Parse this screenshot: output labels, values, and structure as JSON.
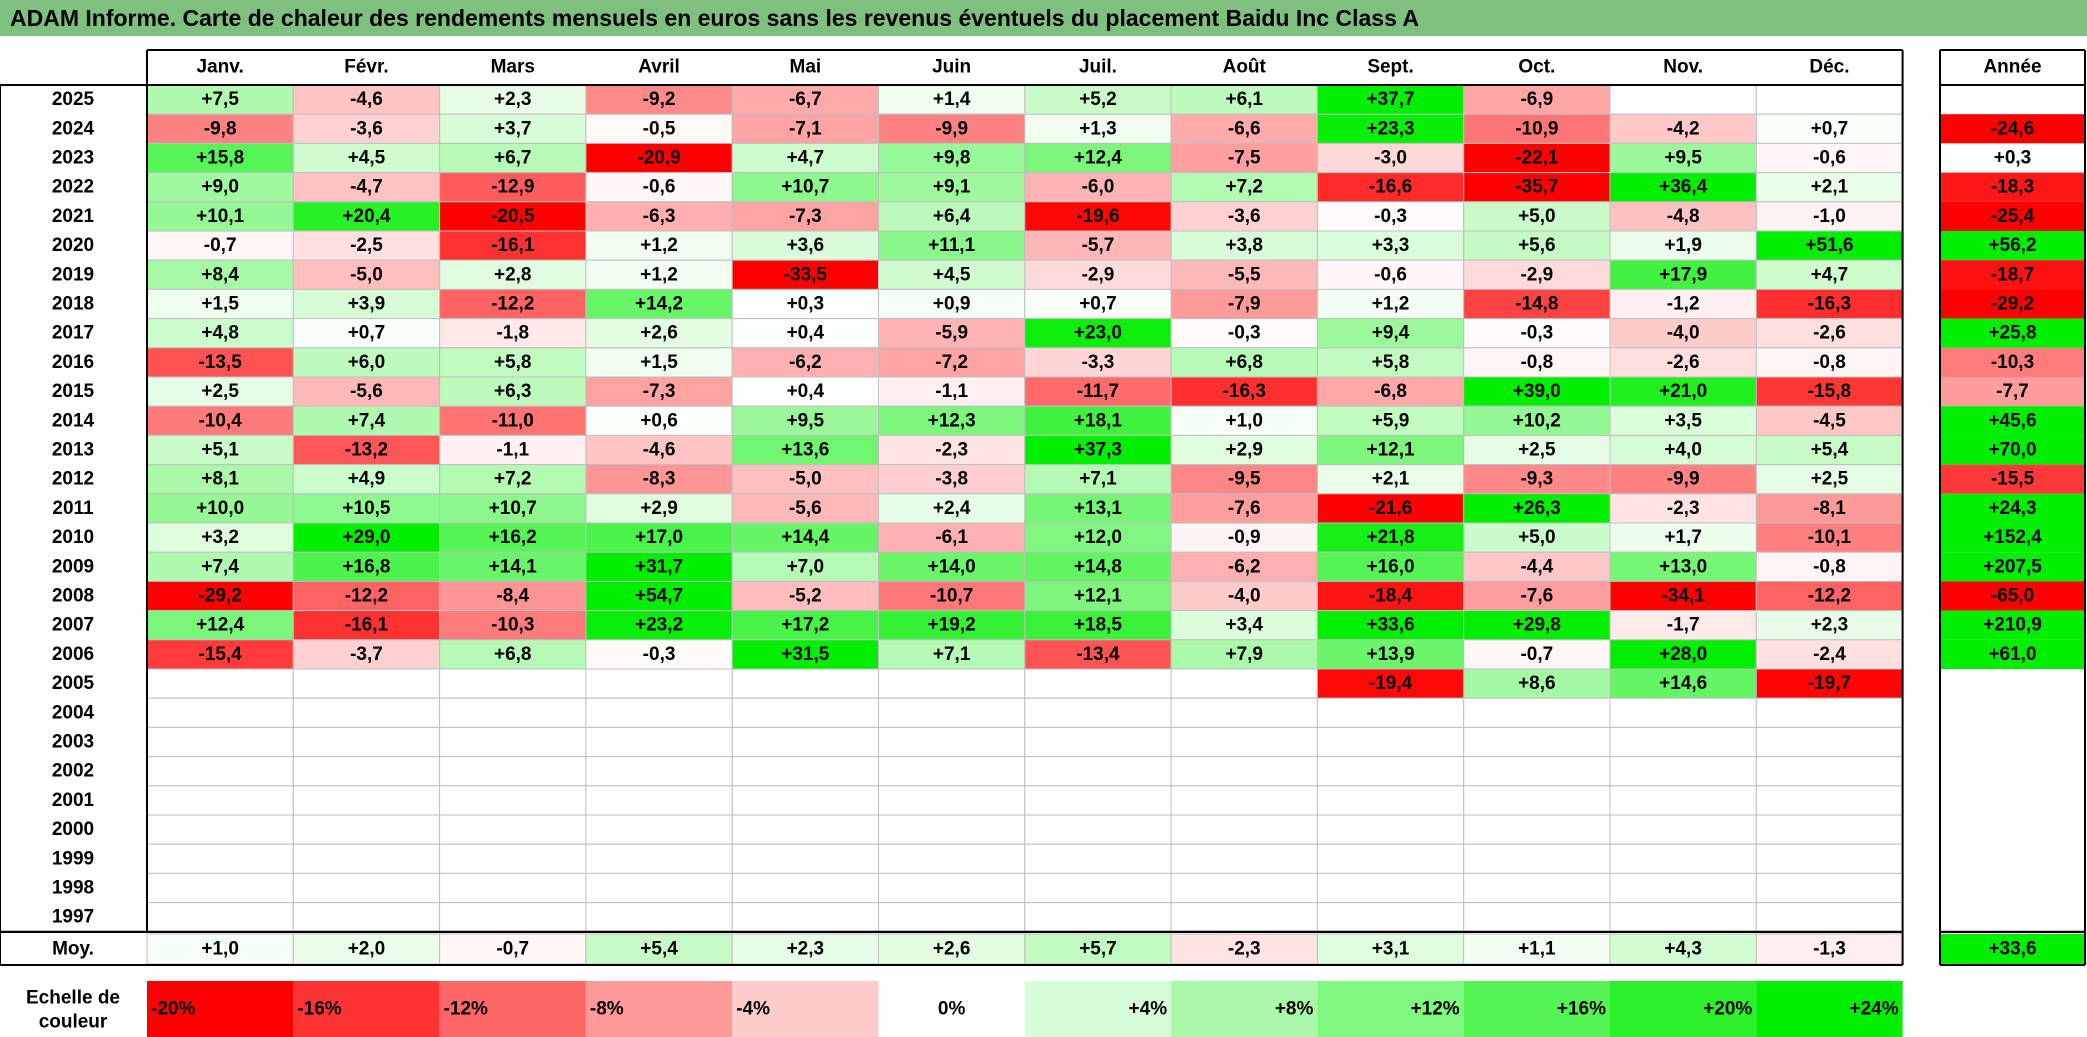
{
  "title": "ADAM Informe. Carte de chaleur des rendements mensuels en euros sans les revenus éventuels du placement Baidu Inc Class A",
  "colors": {
    "title_bar": "#7ec07e",
    "negative_max": "#ff0000",
    "neutral": "#ffffff",
    "positive_max": "#00ee00",
    "grid": "#bfbfbf",
    "border": "#000000"
  },
  "chart_data": {
    "type": "heatmap",
    "title": "ADAM Informe. Carte de chaleur des rendements mensuels en euros sans les revenus éventuels du placement Baidu Inc Class A",
    "months": [
      "Janv.",
      "Févr.",
      "Mars",
      "Avril",
      "Mai",
      "Juin",
      "Juil.",
      "Août",
      "Sept.",
      "Oct.",
      "Nov.",
      "Déc."
    ],
    "year_header": "Année",
    "years": [
      "2025",
      "2024",
      "2023",
      "2022",
      "2021",
      "2020",
      "2019",
      "2018",
      "2017",
      "2016",
      "2015",
      "2014",
      "2013",
      "2012",
      "2011",
      "2010",
      "2009",
      "2008",
      "2007",
      "2006",
      "2005",
      "2004",
      "2003",
      "2002",
      "2001",
      "2000",
      "1999",
      "1998",
      "1997"
    ],
    "values": [
      [
        "+7,5",
        "-4,6",
        "+2,3",
        "-9,2",
        "-6,7",
        "+1,4",
        "+5,2",
        "+6,1",
        "+37,7",
        "-6,9",
        "",
        ""
      ],
      [
        "-9,8",
        "-3,6",
        "+3,7",
        "-0,5",
        "-7,1",
        "-9,9",
        "+1,3",
        "-6,6",
        "+23,3",
        "-10,9",
        "-4,2",
        "+0,7"
      ],
      [
        "+15,8",
        "+4,5",
        "+6,7",
        "-20,9",
        "+4,7",
        "+9,8",
        "+12,4",
        "-7,5",
        "-3,0",
        "-22,1",
        "+9,5",
        "-0,6"
      ],
      [
        "+9,0",
        "-4,7",
        "-12,9",
        "-0,6",
        "+10,7",
        "+9,1",
        "-6,0",
        "+7,2",
        "-16,6",
        "-35,7",
        "+36,4",
        "+2,1"
      ],
      [
        "+10,1",
        "+20,4",
        "-20,5",
        "-6,3",
        "-7,3",
        "+6,4",
        "-19,6",
        "-3,6",
        "-0,3",
        "+5,0",
        "-4,8",
        "-1,0"
      ],
      [
        "-0,7",
        "-2,5",
        "-16,1",
        "+1,2",
        "+3,6",
        "+11,1",
        "-5,7",
        "+3,8",
        "+3,3",
        "+5,6",
        "+1,9",
        "+51,6"
      ],
      [
        "+8,4",
        "-5,0",
        "+2,8",
        "+1,2",
        "-33,5",
        "+4,5",
        "-2,9",
        "-5,5",
        "-0,6",
        "-2,9",
        "+17,9",
        "+4,7"
      ],
      [
        "+1,5",
        "+3,9",
        "-12,2",
        "+14,2",
        "+0,3",
        "+0,9",
        "+0,7",
        "-7,9",
        "+1,2",
        "-14,8",
        "-1,2",
        "-16,3"
      ],
      [
        "+4,8",
        "+0,7",
        "-1,8",
        "+2,6",
        "+0,4",
        "-5,9",
        "+23,0",
        "-0,3",
        "+9,4",
        "-0,3",
        "-4,0",
        "-2,6"
      ],
      [
        "-13,5",
        "+6,0",
        "+5,8",
        "+1,5",
        "-6,2",
        "-7,2",
        "-3,3",
        "+6,8",
        "+5,8",
        "-0,8",
        "-2,6",
        "-0,8"
      ],
      [
        "+2,5",
        "-5,6",
        "+6,3",
        "-7,3",
        "+0,4",
        "-1,1",
        "-11,7",
        "-16,3",
        "-6,8",
        "+39,0",
        "+21,0",
        "-15,8"
      ],
      [
        "-10,4",
        "+7,4",
        "-11,0",
        "+0,6",
        "+9,5",
        "+12,3",
        "+18,1",
        "+1,0",
        "+5,9",
        "+10,2",
        "+3,5",
        "-4,5"
      ],
      [
        "+5,1",
        "-13,2",
        "-1,1",
        "-4,6",
        "+13,6",
        "-2,3",
        "+37,3",
        "+2,9",
        "+12,1",
        "+2,5",
        "+4,0",
        "+5,4"
      ],
      [
        "+8,1",
        "+4,9",
        "+7,2",
        "-8,3",
        "-5,0",
        "-3,8",
        "+7,1",
        "-9,5",
        "+2,1",
        "-9,3",
        "-9,9",
        "+2,5"
      ],
      [
        "+10,0",
        "+10,5",
        "+10,7",
        "+2,9",
        "-5,6",
        "+2,4",
        "+13,1",
        "-7,6",
        "-21,6",
        "+26,3",
        "-2,3",
        "-8,1"
      ],
      [
        "+3,2",
        "+29,0",
        "+16,2",
        "+17,0",
        "+14,4",
        "-6,1",
        "+12,0",
        "-0,9",
        "+21,8",
        "+5,0",
        "+1,7",
        "-10,1"
      ],
      [
        "+7,4",
        "+16,8",
        "+14,1",
        "+31,7",
        "+7,0",
        "+14,0",
        "+14,8",
        "-6,2",
        "+16,0",
        "-4,4",
        "+13,0",
        "-0,8"
      ],
      [
        "-29,2",
        "-12,2",
        "-8,4",
        "+54,7",
        "-5,2",
        "-10,7",
        "+12,1",
        "-4,0",
        "-18,4",
        "-7,6",
        "-34,1",
        "-12,2"
      ],
      [
        "+12,4",
        "-16,1",
        "-10,3",
        "+23,2",
        "+17,2",
        "+19,2",
        "+18,5",
        "+3,4",
        "+33,6",
        "+29,8",
        "-1,7",
        "+2,3"
      ],
      [
        "-15,4",
        "-3,7",
        "+6,8",
        "-0,3",
        "+31,5",
        "+7,1",
        "-13,4",
        "+7,9",
        "+13,9",
        "-0,7",
        "+28,0",
        "-2,4"
      ],
      [
        "",
        "",
        "",
        "",
        "",
        "",
        "",
        "",
        "-19,4",
        "+8,6",
        "+14,6",
        "-19,7"
      ],
      [
        "",
        "",
        "",
        "",
        "",
        "",
        "",
        "",
        "",
        "",
        "",
        ""
      ],
      [
        "",
        "",
        "",
        "",
        "",
        "",
        "",
        "",
        "",
        "",
        "",
        ""
      ],
      [
        "",
        "",
        "",
        "",
        "",
        "",
        "",
        "",
        "",
        "",
        "",
        ""
      ],
      [
        "",
        "",
        "",
        "",
        "",
        "",
        "",
        "",
        "",
        "",
        "",
        ""
      ],
      [
        "",
        "",
        "",
        "",
        "",
        "",
        "",
        "",
        "",
        "",
        "",
        ""
      ],
      [
        "",
        "",
        "",
        "",
        "",
        "",
        "",
        "",
        "",
        "",
        "",
        ""
      ],
      [
        "",
        "",
        "",
        "",
        "",
        "",
        "",
        "",
        "",
        "",
        "",
        ""
      ],
      [
        "",
        "",
        "",
        "",
        "",
        "",
        "",
        "",
        "",
        "",
        "",
        ""
      ]
    ],
    "annual": [
      "",
      "-24,6",
      "+0,3",
      "-18,3",
      "-25,4",
      "+56,2",
      "-18,7",
      "-29,2",
      "+25,8",
      "-10,3",
      "-7,7",
      "+45,6",
      "+70,0",
      "-15,5",
      "+24,3",
      "+152,4",
      "+207,5",
      "-65,0",
      "+210,9",
      "+61,0",
      "",
      "",
      "",
      "",
      "",
      "",
      "",
      "",
      ""
    ],
    "average_label": "Moy.",
    "average": [
      "+1,0",
      "+2,0",
      "-0,7",
      "+5,4",
      "+2,3",
      "+2,6",
      "+5,7",
      "-2,3",
      "+3,1",
      "+1,1",
      "+4,3",
      "-1,3"
    ],
    "average_annual": "+33,6",
    "scale_label_1": "Echelle de",
    "scale_label_2": "couleur",
    "scale": [
      {
        "label": "-20%",
        "value": -20
      },
      {
        "label": "-16%",
        "value": -16
      },
      {
        "label": "-12%",
        "value": -12
      },
      {
        "label": "-8%",
        "value": -8
      },
      {
        "label": "-4%",
        "value": -4
      },
      {
        "label": "0%",
        "value": 0
      },
      {
        "label": "+4%",
        "value": 4
      },
      {
        "label": "+8%",
        "value": 8
      },
      {
        "label": "+12%",
        "value": 12
      },
      {
        "label": "+16%",
        "value": 16
      },
      {
        "label": "+20%",
        "value": 20
      },
      {
        "label": "+24%",
        "value": 24
      }
    ],
    "color_range": [
      -20,
      24
    ]
  }
}
